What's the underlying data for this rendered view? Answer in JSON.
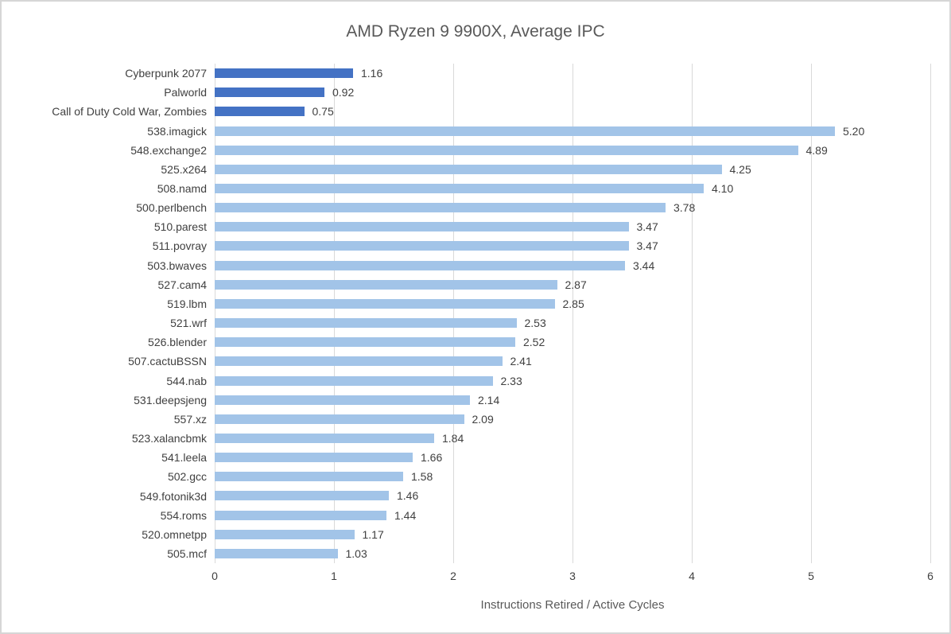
{
  "chart_data": {
    "type": "bar",
    "orientation": "horizontal",
    "title": "AMD Ryzen 9 9900X, Average IPC",
    "xlabel": "Instructions Retired / Active Cycles",
    "xlim": [
      0,
      6
    ],
    "xticks": [
      "0",
      "1",
      "2",
      "3",
      "4",
      "5",
      "6"
    ],
    "grid": true,
    "legend": "none",
    "categories": [
      "Cyberpunk 2077",
      "Palworld",
      "Call of Duty Cold War, Zombies",
      "538.imagick",
      "548.exchange2",
      "525.x264",
      "508.namd",
      "500.perlbench",
      "510.parest",
      "511.povray",
      "503.bwaves",
      "527.cam4",
      "519.lbm",
      "521.wrf",
      "526.blender",
      "507.cactuBSSN",
      "544.nab",
      "531.deepsjeng",
      "557.xz",
      "523.xalancbmk",
      "541.leela",
      "502.gcc",
      "549.fotonik3d",
      "554.roms",
      "520.omnetpp",
      "505.mcf"
    ],
    "values": [
      1.16,
      0.92,
      0.75,
      5.2,
      4.89,
      4.25,
      4.1,
      3.78,
      3.47,
      3.47,
      3.44,
      2.87,
      2.85,
      2.53,
      2.52,
      2.41,
      2.33,
      2.14,
      2.09,
      1.84,
      1.66,
      1.58,
      1.46,
      1.44,
      1.17,
      1.03
    ],
    "value_labels": [
      "1.16",
      "0.92",
      "0.75",
      "5.20",
      "4.89",
      "4.25",
      "4.10",
      "3.78",
      "3.47",
      "3.47",
      "3.44",
      "2.87",
      "2.85",
      "2.53",
      "2.52",
      "2.41",
      "2.33",
      "2.14",
      "2.09",
      "1.84",
      "1.66",
      "1.58",
      "1.46",
      "1.44",
      "1.17",
      "1.03"
    ],
    "groups": [
      "game",
      "game",
      "game",
      "spec",
      "spec",
      "spec",
      "spec",
      "spec",
      "spec",
      "spec",
      "spec",
      "spec",
      "spec",
      "spec",
      "spec",
      "spec",
      "spec",
      "spec",
      "spec",
      "spec",
      "spec",
      "spec",
      "spec",
      "spec",
      "spec",
      "spec"
    ]
  },
  "colors": {
    "bar_game": "#4472c4",
    "bar_spec": "#a2c4e8",
    "gridline": "#d9d9d9",
    "label_text": "#404040",
    "title_text": "#595959",
    "frame_border": "#d6d6d6"
  }
}
